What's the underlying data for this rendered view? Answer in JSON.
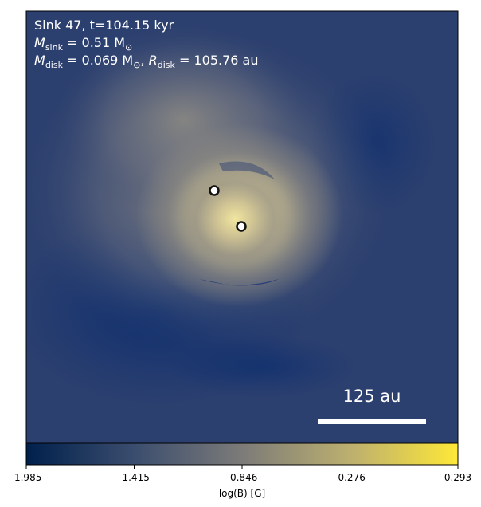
{
  "panel": {
    "line1": "Sink 47, t=104.15 kyr",
    "line2_sym": "M",
    "line2_sub": "sink",
    "line2_value": " = 0.51 M",
    "line2_unit_sym": "⊙",
    "line3_sym": "M",
    "line3_sub": "disk",
    "line3_value": " = 0.069 M",
    "line3_unit_sym": "⊙",
    "line3_sep": ", ",
    "line3_r_sym": "R",
    "line3_r_sub": "disk",
    "line3_r_value": " = 105.76 au"
  },
  "scale_bar": {
    "label": "125 au"
  },
  "colorbar": {
    "ticks": [
      "-1.985",
      "-1.415",
      "-0.846",
      "-0.276",
      "0.293"
    ],
    "label": "log(B) [G]",
    "min": -1.985,
    "max": 0.293
  },
  "colors": {
    "background": "#2b3f6e",
    "dark": "#0a2a6a",
    "mid": "#7c7b78",
    "light": "#d8cd96",
    "bright": "#fde73a",
    "sink_fill": "#ffffff",
    "sink_stroke": "#111111"
  }
}
